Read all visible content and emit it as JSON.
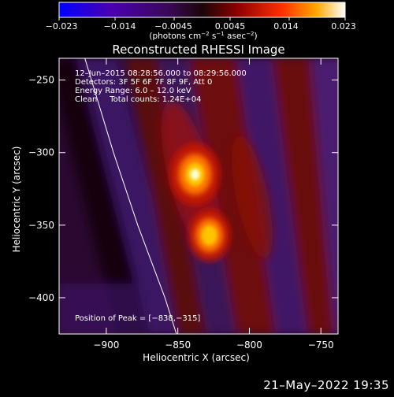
{
  "chart_data": {
    "type": "heatmap",
    "title": "Reconstructed RHESSI Image",
    "xlabel": "Heliocentric X (arcsec)",
    "ylabel": "Heliocentric Y (arcsec)",
    "xlim": [
      -933,
      -738
    ],
    "ylim": [
      -425,
      -235
    ],
    "xticks": [
      -900,
      -850,
      -800,
      -750
    ],
    "yticks": [
      -250,
      -300,
      -350,
      -400
    ],
    "xtick_labels": [
      "−900",
      "−850",
      "−800",
      "−750"
    ],
    "ytick_labels": [
      "−250",
      "−300",
      "−350",
      "−400"
    ],
    "colorbar": {
      "min": -0.023,
      "max": 0.023,
      "ticks": [
        "−0.023",
        "−0.014",
        "−0.0045",
        "0.0045",
        "0.014",
        "0.023"
      ],
      "unit_parts": [
        "(photons cm",
        "−2",
        " s",
        "−1",
        " asec",
        "−2",
        ")"
      ]
    },
    "annotations": [
      "12–Jun–2015 08:28:56.000 to 08:29:56.000",
      "Detectors: 3F 5F 6F 7F 8F 9F, Att 0",
      "Energy Range: 6.0 – 12.0 keV",
      "Clean     Total counts: 1.24E+04"
    ],
    "peak_label": "Position of Peak = [−838,−315]",
    "peak_arcsec": [
      -838,
      -315
    ],
    "sources": [
      {
        "x": -838,
        "y": -315,
        "relative_intensity": 1.0
      },
      {
        "x": -828,
        "y": -357,
        "relative_intensity": 0.8
      }
    ],
    "limb_curve_arcsec": [
      [
        -915,
        -235
      ],
      [
        -895,
        -300
      ],
      [
        -878,
        -350
      ],
      [
        -859,
        -400
      ],
      [
        -851,
        -425
      ]
    ]
  },
  "footer": {
    "date_time": "21–May–2022 19:35"
  },
  "colors": {
    "background": "#000000",
    "foreground": "#ffffff",
    "colormap": [
      "#0000ff",
      "#4a00b0",
      "#3a0858",
      "#1a0608",
      "#8a0000",
      "#ff3000",
      "#ffa800",
      "#ffffff"
    ]
  }
}
